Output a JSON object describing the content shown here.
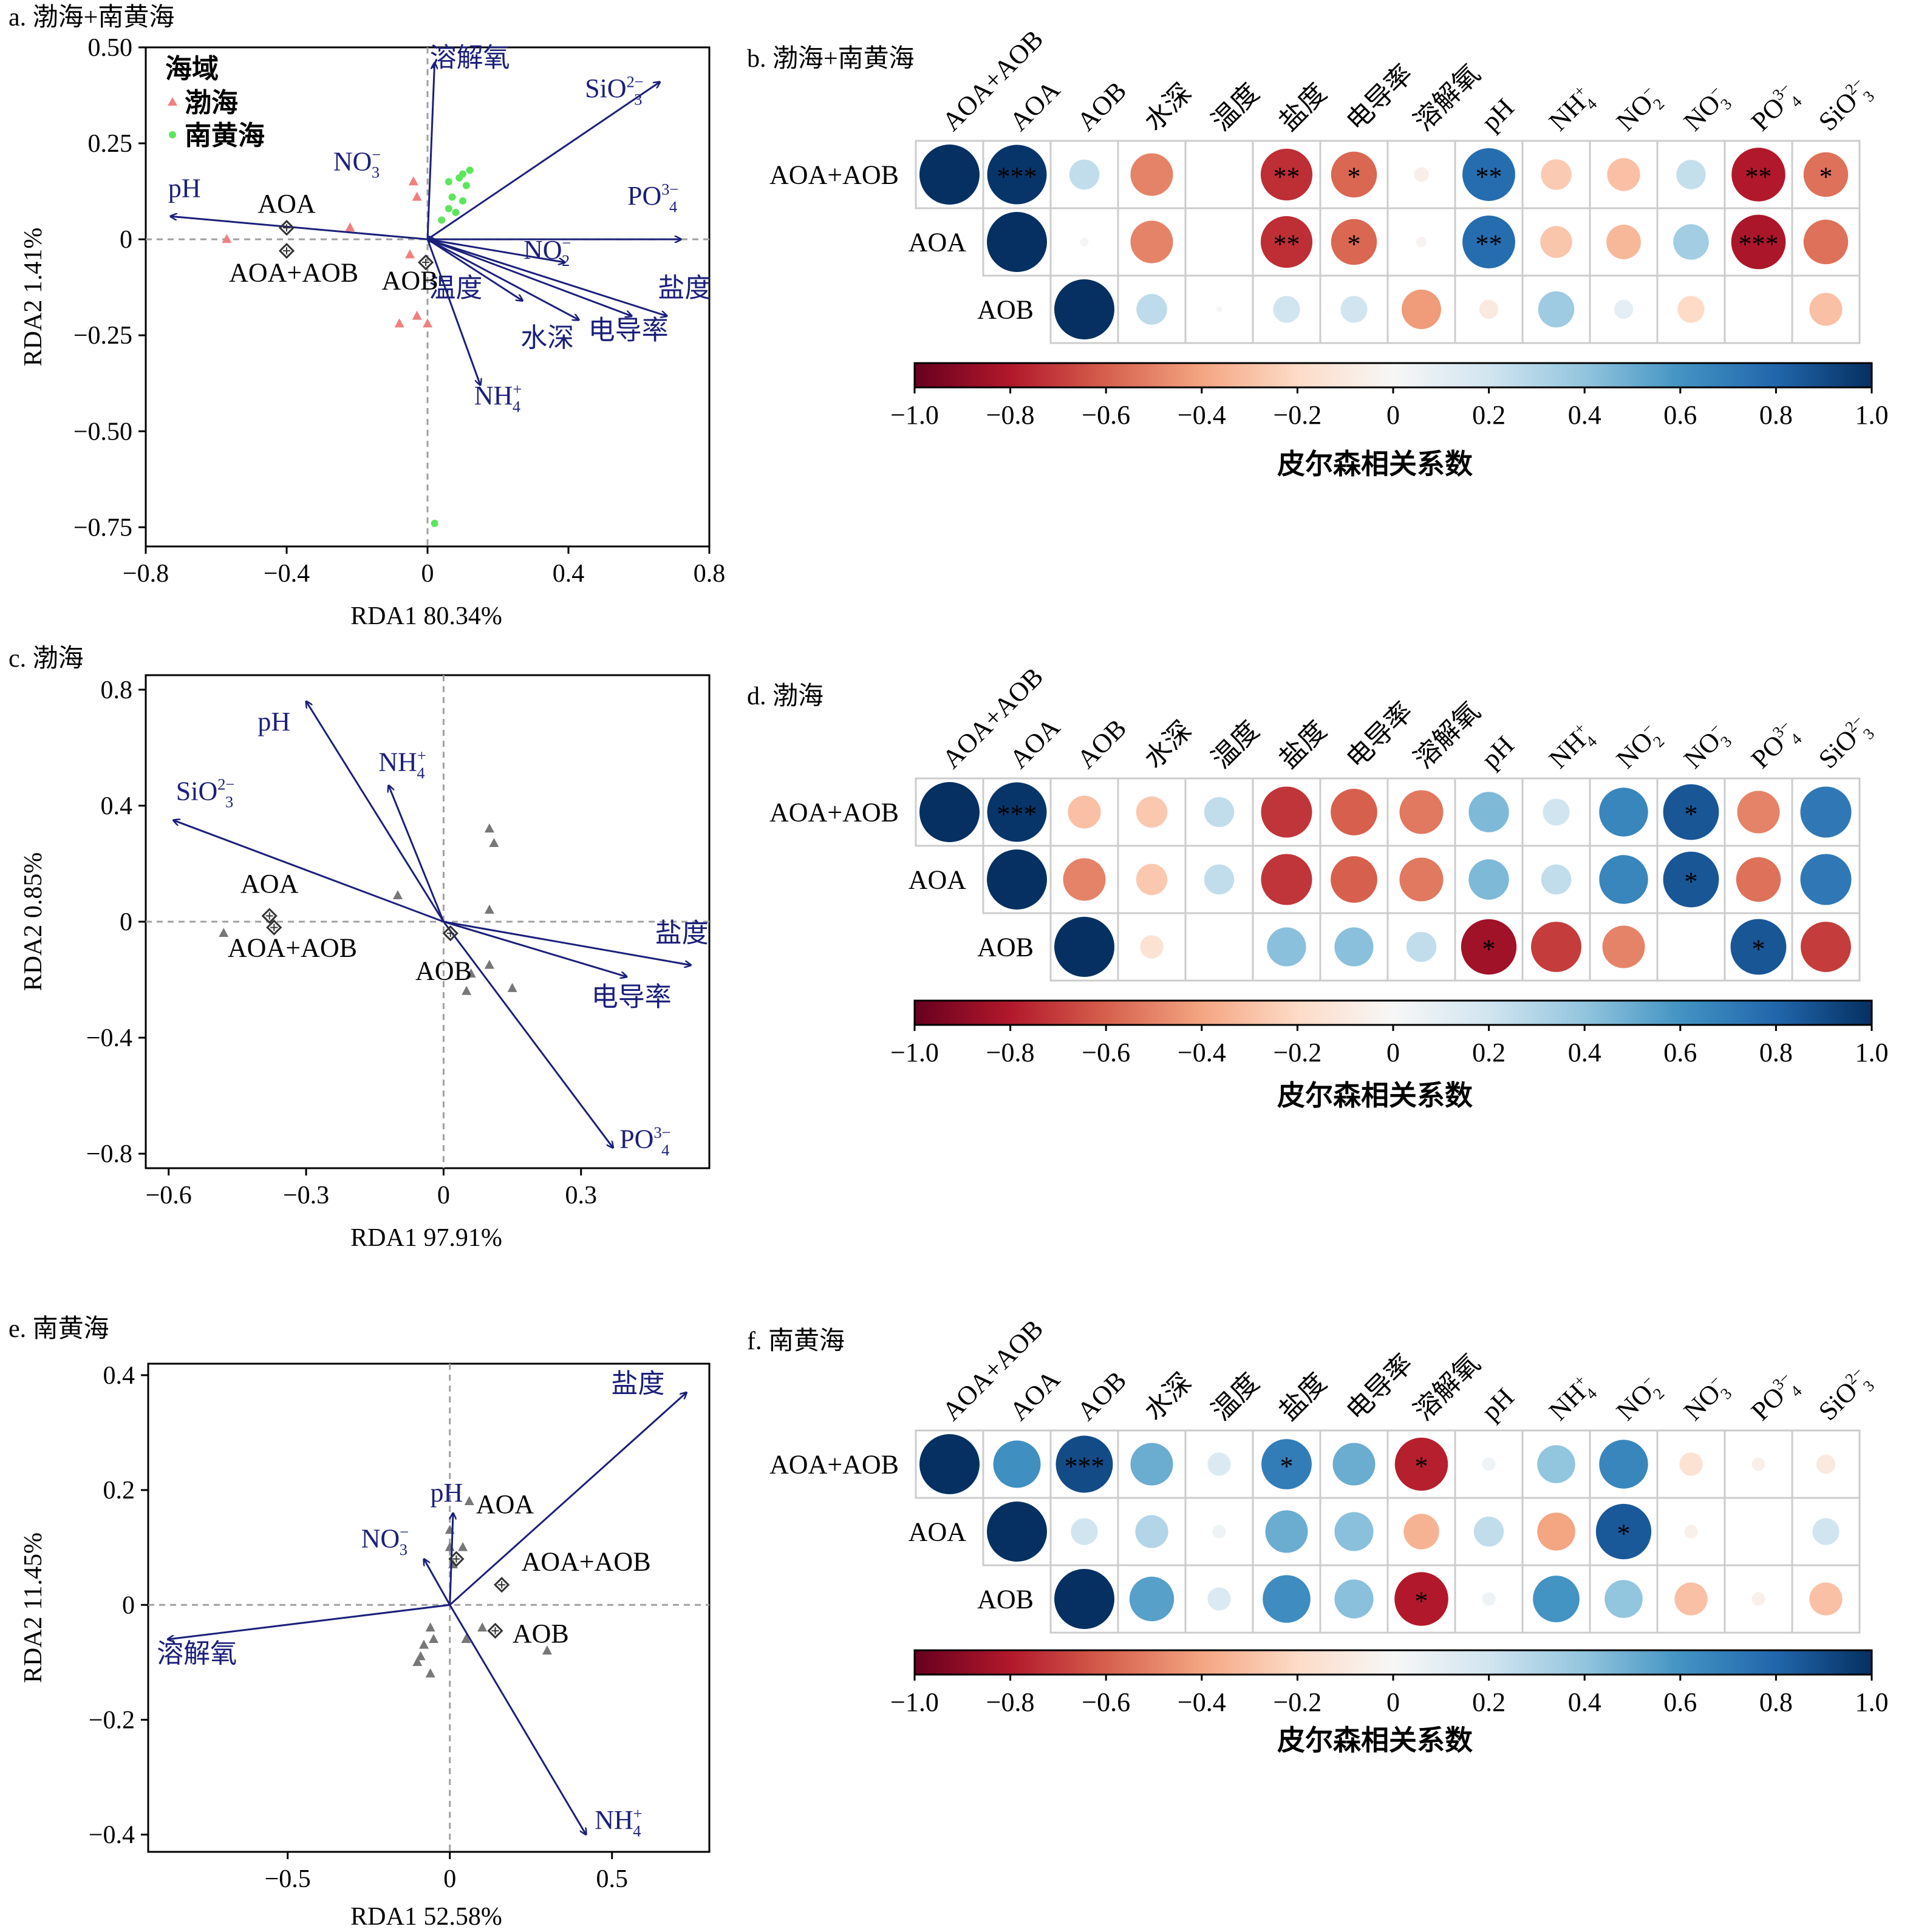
{
  "colors": {
    "arrow": "#1b1f7a",
    "bohai": "#f08080",
    "southYellowSea": "#5ce65c",
    "grayPoint": "#777777",
    "diamond": "#333333",
    "frame": "#000000",
    "zeroLine": "#a0a0a0",
    "cellBorder": "#cccccc"
  },
  "colorbar": {
    "stops": [
      {
        "v": -1.0,
        "c": "#67001f"
      },
      {
        "v": -0.8,
        "c": "#b2182b"
      },
      {
        "v": -0.6,
        "c": "#d6604d"
      },
      {
        "v": -0.4,
        "c": "#f4a582"
      },
      {
        "v": -0.2,
        "c": "#fddbc7"
      },
      {
        "v": 0.0,
        "c": "#f7f7f7"
      },
      {
        "v": 0.2,
        "c": "#d1e5f0"
      },
      {
        "v": 0.4,
        "c": "#92c5de"
      },
      {
        "v": 0.6,
        "c": "#4393c3"
      },
      {
        "v": 0.8,
        "c": "#2166ac"
      },
      {
        "v": 1.0,
        "c": "#053061"
      }
    ],
    "ticks": [
      "−1.0",
      "−0.8",
      "−0.6",
      "−0.4",
      "−0.2",
      "0",
      "0.2",
      "0.4",
      "0.6",
      "0.8",
      "1.0"
    ],
    "label": "皮尔森相关系数"
  },
  "chart_data": [
    {
      "id": "a",
      "type": "scatter",
      "title": "a. 渤海+南黄海",
      "xlabel": "RDA1 80.34%",
      "ylabel": "RDA2 1.41%",
      "xlim": [
        -0.8,
        0.8
      ],
      "ylim": [
        -0.8,
        0.5
      ],
      "xticks": [
        -0.8,
        -0.4,
        0,
        0.4,
        0.8
      ],
      "yticks": [
        0.5,
        0.25,
        0,
        -0.25,
        -0.5,
        -0.75
      ],
      "xtick_labels": [
        "−0.8",
        "−0.4",
        "0",
        "0.4",
        "0.8"
      ],
      "ytick_labels": [
        "0.50",
        "0.25",
        "0",
        "−0.25",
        "−0.50",
        "−0.75"
      ],
      "legend": {
        "title": "海域",
        "placement": "top-left",
        "items": [
          {
            "label": "渤海",
            "marker": "triangle",
            "color": "#f08080"
          },
          {
            "label": "南黄海",
            "marker": "circle",
            "color": "#5ce65c"
          }
        ]
      },
      "arrows": [
        {
          "label": "溶解氧",
          "x": 0.02,
          "y": 0.46,
          "lx": 0.12,
          "ly": 0.45
        },
        {
          "label": "SiO3 2−",
          "x": 0.66,
          "y": 0.41,
          "lx": 0.53,
          "ly": 0.37
        },
        {
          "label": "NO3 −",
          "x": 0.02,
          "y": 0.0,
          "lx": -0.2,
          "ly": 0.18
        },
        {
          "label": "pH",
          "x": -0.73,
          "y": 0.06,
          "lx": -0.69,
          "ly": 0.11
        },
        {
          "label": "PO4 3−",
          "x": 0.72,
          "y": 0.0,
          "lx": 0.64,
          "ly": 0.09
        },
        {
          "label": "NO2 −",
          "x": 0.39,
          "y": -0.06,
          "lx": 0.34,
          "ly": -0.05
        },
        {
          "label": "盐度",
          "x": 0.68,
          "y": -0.2,
          "lx": 0.73,
          "ly": -0.15
        },
        {
          "label": "电导率",
          "x": 0.58,
          "y": -0.2,
          "lx": 0.57,
          "ly": -0.26
        },
        {
          "label": "温度",
          "x": 0.27,
          "y": -0.16,
          "lx": 0.08,
          "ly": -0.15
        },
        {
          "label": "水深",
          "x": 0.43,
          "y": -0.21,
          "lx": 0.34,
          "ly": -0.28
        },
        {
          "label": "NH4 +",
          "x": 0.15,
          "y": -0.38,
          "lx": 0.2,
          "ly": -0.43
        }
      ],
      "species": [
        {
          "label": "AOA",
          "x": -0.4,
          "y": 0.03,
          "lx": -0.4,
          "ly": 0.07
        },
        {
          "label": "AOA+AOB",
          "x": -0.4,
          "y": -0.03,
          "lx": -0.38,
          "ly": -0.11
        },
        {
          "label": "AOB",
          "x": -0.005,
          "y": -0.06,
          "lx": -0.05,
          "ly": -0.13
        }
      ],
      "points": [
        {
          "x": -0.57,
          "y": 0.0,
          "marker": "triangle",
          "color": "#f08080"
        },
        {
          "x": -0.22,
          "y": 0.03,
          "marker": "triangle",
          "color": "#f08080"
        },
        {
          "x": -0.04,
          "y": 0.15,
          "marker": "triangle",
          "color": "#f08080"
        },
        {
          "x": -0.03,
          "y": 0.11,
          "marker": "triangle",
          "color": "#f08080"
        },
        {
          "x": -0.05,
          "y": -0.04,
          "marker": "triangle",
          "color": "#f08080"
        },
        {
          "x": -0.08,
          "y": -0.22,
          "marker": "triangle",
          "color": "#f08080"
        },
        {
          "x": 0.0,
          "y": -0.22,
          "marker": "triangle",
          "color": "#f08080"
        },
        {
          "x": -0.03,
          "y": -0.2,
          "marker": "triangle",
          "color": "#f08080"
        },
        {
          "x": 0.06,
          "y": 0.15,
          "marker": "circle",
          "color": "#5ce65c"
        },
        {
          "x": 0.09,
          "y": 0.16,
          "marker": "circle",
          "color": "#5ce65c"
        },
        {
          "x": 0.1,
          "y": 0.17,
          "marker": "circle",
          "color": "#5ce65c"
        },
        {
          "x": 0.11,
          "y": 0.14,
          "marker": "circle",
          "color": "#5ce65c"
        },
        {
          "x": 0.12,
          "y": 0.18,
          "marker": "circle",
          "color": "#5ce65c"
        },
        {
          "x": 0.07,
          "y": 0.11,
          "marker": "circle",
          "color": "#5ce65c"
        },
        {
          "x": 0.1,
          "y": 0.1,
          "marker": "circle",
          "color": "#5ce65c"
        },
        {
          "x": 0.06,
          "y": 0.08,
          "marker": "circle",
          "color": "#5ce65c"
        },
        {
          "x": 0.08,
          "y": 0.07,
          "marker": "circle",
          "color": "#5ce65c"
        },
        {
          "x": 0.04,
          "y": 0.05,
          "marker": "circle",
          "color": "#5ce65c"
        },
        {
          "x": 0.02,
          "y": -0.74,
          "marker": "circle",
          "color": "#5ce65c"
        }
      ]
    },
    {
      "id": "c",
      "type": "scatter",
      "title": "c. 渤海",
      "xlabel": "RDA1 97.91%",
      "ylabel": "RDA2 0.85%",
      "xlim": [
        -0.65,
        0.58
      ],
      "ylim": [
        -0.85,
        0.85
      ],
      "xticks": [
        -0.6,
        -0.3,
        0,
        0.3
      ],
      "yticks": [
        0.8,
        0.4,
        0,
        -0.4,
        -0.8
      ],
      "xtick_labels": [
        "−0.6",
        "−0.3",
        "0",
        "0.3"
      ],
      "ytick_labels": [
        "0.8",
        "0.4",
        "0",
        "−0.4",
        "−0.8"
      ],
      "arrows": [
        {
          "label": "pH",
          "x": -0.3,
          "y": 0.76,
          "lx": -0.37,
          "ly": 0.66
        },
        {
          "label": "NH4 +",
          "x": -0.12,
          "y": 0.47,
          "lx": -0.09,
          "ly": 0.52
        },
        {
          "label": "SiO3 2−",
          "x": -0.59,
          "y": 0.35,
          "lx": -0.52,
          "ly": 0.42
        },
        {
          "label": "盐度",
          "x": 0.54,
          "y": -0.15,
          "lx": 0.52,
          "ly": -0.07
        },
        {
          "label": "电导率",
          "x": 0.4,
          "y": -0.19,
          "lx": 0.41,
          "ly": -0.29
        },
        {
          "label": "PO4 3−",
          "x": 0.37,
          "y": -0.78,
          "lx": 0.44,
          "ly": -0.78
        }
      ],
      "species": [
        {
          "label": "AOA",
          "x": -0.38,
          "y": 0.02,
          "lx": -0.38,
          "ly": 0.1
        },
        {
          "label": "AOA+AOB",
          "x": -0.37,
          "y": -0.02,
          "lx": -0.33,
          "ly": -0.12
        },
        {
          "label": "AOB",
          "x": 0.015,
          "y": -0.04,
          "lx": 0.0,
          "ly": -0.2
        }
      ],
      "points": [
        {
          "x": -0.48,
          "y": -0.04,
          "marker": "triangle",
          "color": "#777777"
        },
        {
          "x": -0.1,
          "y": 0.09,
          "marker": "triangle",
          "color": "#777777"
        },
        {
          "x": 0.1,
          "y": 0.32,
          "marker": "triangle",
          "color": "#777777"
        },
        {
          "x": 0.11,
          "y": 0.27,
          "marker": "triangle",
          "color": "#777777"
        },
        {
          "x": 0.1,
          "y": 0.04,
          "marker": "triangle",
          "color": "#777777"
        },
        {
          "x": 0.1,
          "y": -0.15,
          "marker": "triangle",
          "color": "#777777"
        },
        {
          "x": 0.06,
          "y": -0.18,
          "marker": "triangle",
          "color": "#777777"
        },
        {
          "x": 0.15,
          "y": -0.23,
          "marker": "triangle",
          "color": "#777777"
        },
        {
          "x": 0.05,
          "y": -0.24,
          "marker": "triangle",
          "color": "#777777"
        }
      ]
    },
    {
      "id": "e",
      "type": "scatter",
      "title": "e. 南黄海",
      "xlabel": "RDA1 52.58%",
      "ylabel": "RDA2 11.45%",
      "xlim": [
        -0.93,
        0.8
      ],
      "ylim": [
        -0.43,
        0.42
      ],
      "xticks": [
        -0.5,
        0,
        0.5
      ],
      "yticks": [
        0.4,
        0.2,
        0,
        -0.2,
        -0.4
      ],
      "xtick_labels": [
        "−0.5",
        "0",
        "0.5"
      ],
      "ytick_labels": [
        "0.4",
        "0.2",
        "0",
        "−0.2",
        "−0.4"
      ],
      "arrows": [
        {
          "label": "盐度",
          "x": 0.73,
          "y": 0.37,
          "lx": 0.58,
          "ly": 0.37
        },
        {
          "label": "pH",
          "x": 0.01,
          "y": 0.16,
          "lx": -0.01,
          "ly": 0.18
        },
        {
          "label": "NO3 −",
          "x": -0.08,
          "y": 0.08,
          "lx": -0.2,
          "ly": 0.1
        },
        {
          "label": "溶解氧",
          "x": -0.87,
          "y": -0.06,
          "lx": -0.78,
          "ly": -0.1
        },
        {
          "label": "NH4 +",
          "x": 0.42,
          "y": -0.4,
          "lx": 0.52,
          "ly": -0.39
        }
      ],
      "species": [
        {
          "label": "AOA",
          "x": 0.02,
          "y": 0.08,
          "lx": 0.17,
          "ly": 0.16
        },
        {
          "label": "AOA+AOB",
          "x": 0.16,
          "y": 0.035,
          "lx": 0.42,
          "ly": 0.06
        },
        {
          "label": "AOB",
          "x": 0.14,
          "y": -0.045,
          "lx": 0.28,
          "ly": -0.065
        }
      ],
      "points": [
        {
          "x": 0.06,
          "y": 0.18,
          "marker": "triangle",
          "color": "#777777"
        },
        {
          "x": 0.0,
          "y": 0.13,
          "marker": "triangle",
          "color": "#777777"
        },
        {
          "x": 0.0,
          "y": 0.1,
          "marker": "triangle",
          "color": "#777777"
        },
        {
          "x": 0.04,
          "y": 0.1,
          "marker": "triangle",
          "color": "#777777"
        },
        {
          "x": 0.01,
          "y": 0.07,
          "marker": "triangle",
          "color": "#777777"
        },
        {
          "x": -0.06,
          "y": -0.04,
          "marker": "triangle",
          "color": "#777777"
        },
        {
          "x": -0.05,
          "y": -0.06,
          "marker": "triangle",
          "color": "#777777"
        },
        {
          "x": -0.08,
          "y": -0.07,
          "marker": "triangle",
          "color": "#777777"
        },
        {
          "x": -0.09,
          "y": -0.09,
          "marker": "triangle",
          "color": "#777777"
        },
        {
          "x": -0.1,
          "y": -0.1,
          "marker": "triangle",
          "color": "#777777"
        },
        {
          "x": -0.06,
          "y": -0.12,
          "marker": "triangle",
          "color": "#777777"
        },
        {
          "x": 0.05,
          "y": -0.06,
          "marker": "triangle",
          "color": "#777777"
        },
        {
          "x": 0.3,
          "y": -0.08,
          "marker": "triangle",
          "color": "#777777"
        },
        {
          "x": 0.1,
          "y": -0.04,
          "marker": "triangle",
          "color": "#777777"
        }
      ]
    },
    {
      "id": "b",
      "type": "heatmap",
      "title": "b. 渤海+南黄海",
      "rows": [
        "AOA+AOB",
        "AOA",
        "AOB"
      ],
      "columns": [
        "AOA+AOB",
        "AOA",
        "AOB",
        "水深",
        "温度",
        "盐度",
        "电导率",
        "溶解氧",
        "pH",
        "NH4 +",
        "NO2 −",
        "NO3 −",
        "PO4 3−",
        "SiO3 2−"
      ],
      "values": [
        [
          1.0,
          0.98,
          0.25,
          -0.5,
          0.0,
          -0.74,
          -0.58,
          -0.06,
          0.77,
          -0.26,
          -0.3,
          0.24,
          -0.8,
          -0.55
        ],
        [
          null,
          1.0,
          0.02,
          -0.5,
          0.0,
          -0.74,
          -0.58,
          -0.03,
          0.77,
          -0.28,
          -0.33,
          0.35,
          -0.82,
          -0.55
        ],
        [
          null,
          null,
          1.0,
          0.26,
          0.01,
          0.2,
          0.2,
          -0.43,
          -0.1,
          0.36,
          0.1,
          -0.2,
          0.0,
          -0.3
        ]
      ],
      "significance": [
        [
          "",
          "***",
          "",
          "",
          "",
          "**",
          "*",
          "",
          "**",
          "",
          "",
          "",
          "**",
          "*"
        ],
        [
          "",
          "",
          "",
          "",
          "",
          "**",
          "*",
          "",
          "**",
          "",
          "",
          "",
          "***",
          ""
        ],
        [
          "",
          "",
          "",
          "",
          "",
          "",
          "",
          "",
          "",
          "",
          "",
          "",
          "",
          ""
        ]
      ],
      "colorbar_label": "皮尔森相关系数"
    },
    {
      "id": "d",
      "type": "heatmap",
      "title": "d. 渤海",
      "rows": [
        "AOA+AOB",
        "AOA",
        "AOB"
      ],
      "columns": [
        "AOA+AOB",
        "AOA",
        "AOB",
        "水深",
        "温度",
        "盐度",
        "电导率",
        "溶解氧",
        "pH",
        "NH4 +",
        "NO2 −",
        "NO3 −",
        "PO4 3−",
        "SiO3 2−"
      ],
      "values": [
        [
          1.0,
          0.98,
          -0.3,
          -0.27,
          0.25,
          -0.72,
          -0.6,
          -0.53,
          0.45,
          0.2,
          0.66,
          0.86,
          -0.5,
          0.72
        ],
        [
          null,
          1.0,
          -0.5,
          -0.27,
          0.25,
          -0.72,
          -0.6,
          -0.53,
          0.45,
          0.25,
          0.66,
          0.86,
          -0.55,
          0.72
        ],
        [
          null,
          null,
          1.0,
          -0.15,
          0.0,
          0.42,
          0.42,
          0.25,
          -0.85,
          -0.7,
          -0.5,
          0.0,
          0.86,
          -0.7
        ]
      ],
      "significance": [
        [
          "",
          "***",
          "",
          "",
          "",
          "",
          "",
          "",
          "",
          "",
          "",
          "*",
          "",
          ""
        ],
        [
          "",
          "",
          "",
          "",
          "",
          "",
          "",
          "",
          "",
          "",
          "",
          "*",
          "",
          ""
        ],
        [
          "",
          "",
          "",
          "",
          "",
          "",
          "",
          "",
          "*",
          "",
          "",
          "",
          "*",
          ""
        ]
      ],
      "colorbar_label": "皮尔森相关系数"
    },
    {
      "id": "f",
      "type": "heatmap",
      "title": "f. 南黄海",
      "rows": [
        "AOA+AOB",
        "AOA",
        "AOB"
      ],
      "columns": [
        "AOA+AOB",
        "AOA",
        "AOB",
        "水深",
        "温度",
        "盐度",
        "电导率",
        "溶解氧",
        "pH",
        "NH4 +",
        "NO2 −",
        "NO3 −",
        "PO4 3−",
        "SiO3 2−"
      ],
      "values": [
        [
          1.0,
          0.62,
          0.9,
          0.5,
          0.15,
          0.7,
          0.5,
          -0.78,
          0.05,
          0.4,
          0.66,
          -0.15,
          -0.05,
          -0.1
        ],
        [
          null,
          1.0,
          0.2,
          0.3,
          0.05,
          0.5,
          0.42,
          -0.35,
          0.25,
          -0.4,
          0.85,
          -0.05,
          0.0,
          0.2
        ],
        [
          null,
          null,
          1.0,
          0.55,
          0.15,
          0.63,
          0.42,
          -0.8,
          0.05,
          0.6,
          0.4,
          -0.3,
          -0.05,
          -0.3
        ]
      ],
      "significance": [
        [
          "",
          "",
          "***",
          "",
          "",
          "*",
          "",
          "*",
          "",
          "",
          "",
          "",
          "",
          ""
        ],
        [
          "",
          "",
          "",
          "",
          "",
          "",
          "",
          "",
          "",
          "",
          "*",
          "",
          "",
          ""
        ],
        [
          "",
          "",
          "",
          "",
          "",
          "",
          "",
          "*",
          "",
          "",
          "",
          "",
          "",
          ""
        ]
      ],
      "colorbar_label": "皮尔森相关系数"
    }
  ]
}
